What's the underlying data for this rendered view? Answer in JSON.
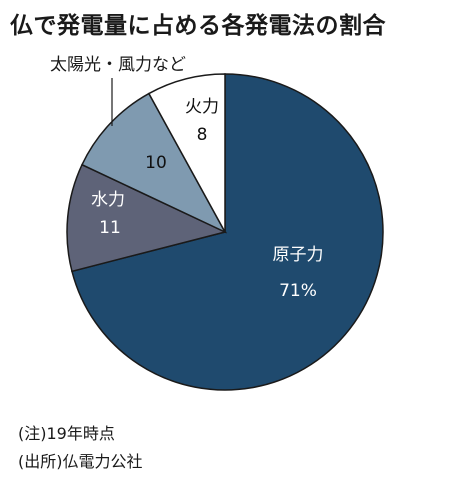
{
  "chart_data": {
    "type": "pie",
    "title": "仏で発電量に占める各発電法の割合",
    "slices": [
      {
        "label": "原子力",
        "value": 71,
        "value_label": "71%",
        "color": "#1f4a6e",
        "text_color": "#ffffff"
      },
      {
        "label": "水力",
        "value": 11,
        "value_label": "11",
        "color": "#5e6378",
        "text_color": "#ffffff"
      },
      {
        "label": "太陽光・風力など",
        "value": 10,
        "value_label": "10",
        "color": "#7f9ab0",
        "text_color": "#111111"
      },
      {
        "label": "火力",
        "value": 8,
        "value_label": "8",
        "color": "#ffffff",
        "text_color": "#111111"
      }
    ]
  },
  "notes": {
    "note": "(注)19年時点",
    "source": "(出所)仏電力公社"
  }
}
